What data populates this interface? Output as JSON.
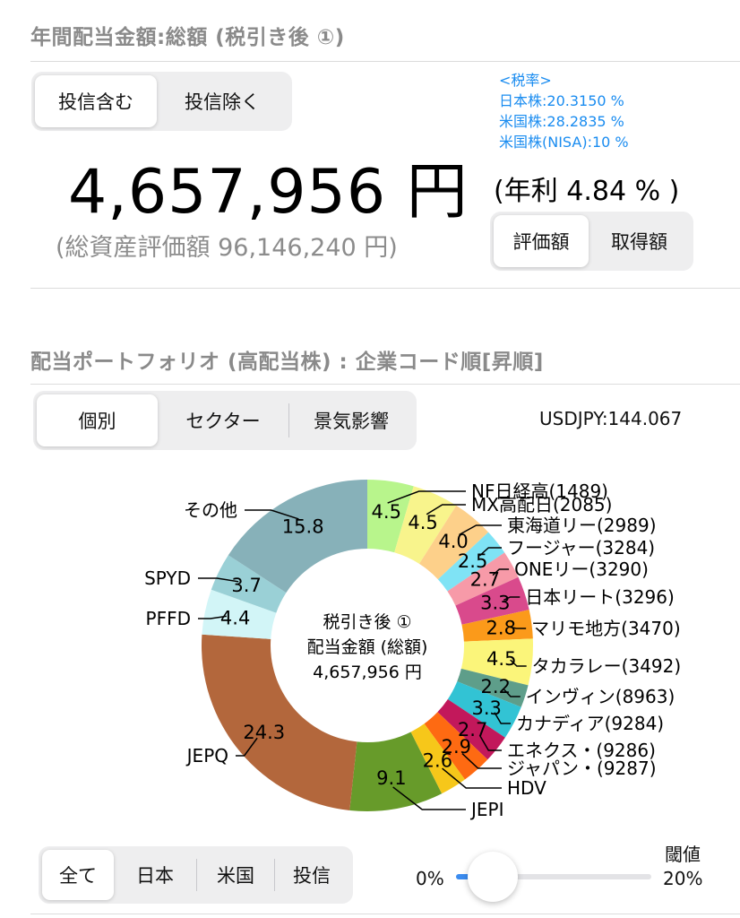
{
  "header": {
    "title": "年間配当金額:総額 (税引き後 ①)",
    "fund_toggle": [
      "投信含む",
      "投信除く"
    ],
    "fund_toggle_selected": 0,
    "amount": "4,657,956 円",
    "total_assets": "(総資産評価額 96,146,240 円)",
    "tax": {
      "heading": "<税率>",
      "lines": [
        "日本株:20.3150 %",
        "米国株:28.2835 %",
        "米国株(NISA):10 %"
      ]
    },
    "yield": "(年利 4.84 % )",
    "basis_toggle": [
      "評価額",
      "取得額"
    ],
    "basis_toggle_selected": 0
  },
  "portfolio": {
    "title": "配当ポートフォリオ (高配当株) : 企業コード順[昇順]",
    "view_tabs": [
      "個別",
      "セクター",
      "景気影響"
    ],
    "view_tabs_selected": 0,
    "fx": "USDJPY:144.067",
    "center_label": [
      "税引き後 ①",
      "配当金額 (総額)",
      "4,657,956 円"
    ]
  },
  "chart_data": {
    "type": "donut",
    "unit": "%",
    "slices": [
      {
        "label": "NF日経高(1489)",
        "value": 4.5,
        "color": "#b8f58c"
      },
      {
        "label": "MX高配日(2085)",
        "value": 4.5,
        "color": "#f8f48c"
      },
      {
        "label": "東海道リー(2989)",
        "value": 4.0,
        "color": "#fdd08a"
      },
      {
        "label": "フージャー(3284)",
        "value": 2.5,
        "color": "#7fe3f5"
      },
      {
        "label": "ONEリー(3290)",
        "value": 2.7,
        "color": "#f79aa8"
      },
      {
        "label": "日本リート(3296)",
        "value": 3.3,
        "color": "#d94a8c"
      },
      {
        "label": "マリモ地方(3470)",
        "value": 2.8,
        "color": "#fb9a1a"
      },
      {
        "label": "タカラレー(3492)",
        "value": 4.5,
        "color": "#fbf57a"
      },
      {
        "label": "インヴィン(8963)",
        "value": 2.2,
        "color": "#5e9e8a"
      },
      {
        "label": "カナディア(9284)",
        "value": 3.3,
        "color": "#32c3d4"
      },
      {
        "label": "エネクス・(9286)",
        "value": 2.7,
        "color": "#c2185b"
      },
      {
        "label": "ジャパン・(9287)",
        "value": 2.9,
        "color": "#fe6a12"
      },
      {
        "label": "HDV",
        "value": 2.6,
        "color": "#f6c71a"
      },
      {
        "label": "JEPI",
        "value": 9.1,
        "color": "#679b2a"
      },
      {
        "label": "JEPQ",
        "value": 24.3,
        "color": "#b3673c"
      },
      {
        "label": "PFFD",
        "value": 4.4,
        "color": "#d2f5f7"
      },
      {
        "label": "SPYD",
        "value": 3.7,
        "color": "#9ad0d6"
      },
      {
        "label": "その他",
        "value": 15.8,
        "color": "#87b1b9"
      }
    ]
  },
  "filter": {
    "tabs": [
      "全て",
      "日本",
      "米国",
      "投信"
    ],
    "selected": 0,
    "threshold_label": "閾値",
    "slider_min": "0%",
    "slider_max": "20%",
    "slider_value_pct": 0
  }
}
